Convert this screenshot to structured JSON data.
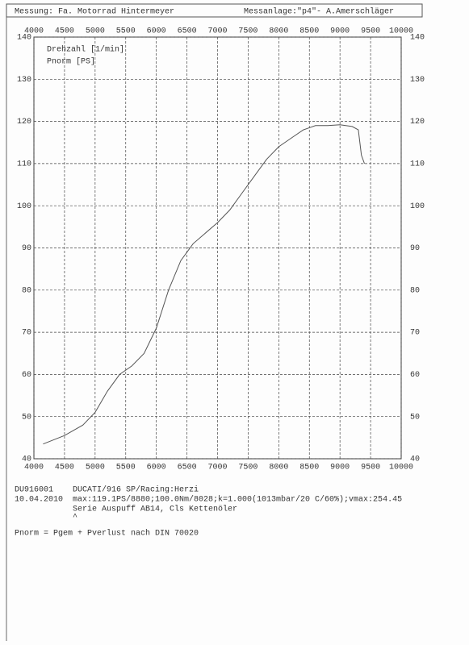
{
  "chart_data": {
    "type": "line",
    "header_left": "Messung: Fa. Motorrad Hintermeyer",
    "header_right": "Messanlage:\"p4\"- A.Amerschläger",
    "xlabel": "Drehzahl [1/min]",
    "ylabel": "Pnorm [PS]",
    "x": [
      4150,
      4500,
      4800,
      5000,
      5200,
      5400,
      5600,
      5800,
      6000,
      6200,
      6400,
      6600,
      6800,
      7000,
      7200,
      7400,
      7600,
      7800,
      8000,
      8200,
      8400,
      8600,
      8800,
      9000,
      9200,
      9300,
      9350,
      9400
    ],
    "values": [
      43.5,
      45.5,
      48,
      51,
      56,
      60,
      62,
      65,
      71,
      80,
      87,
      91,
      93.5,
      96,
      99,
      103,
      107,
      111,
      114,
      116,
      118,
      119,
      119,
      119.2,
      118.8,
      118,
      112,
      110
    ],
    "color": "#555555",
    "xlim": [
      4000,
      10000
    ],
    "xticks": [
      4000,
      4500,
      5000,
      5500,
      6000,
      6500,
      7000,
      7500,
      8000,
      8500,
      9000,
      9500,
      10000
    ],
    "ylim": [
      40,
      140
    ],
    "yticks": [
      40,
      50,
      60,
      70,
      80,
      90,
      100,
      110,
      120,
      130,
      140
    ],
    "grid": true,
    "notes": {
      "id": "DU916001",
      "date": "10.04.2010",
      "vehicle": "DUCATI/916 SP/Racing:Herzi",
      "max": "max:119.1PS/8880;100.0Nm/8028;k=1.000(1013mbar/20 C/60%);vmax:254.45",
      "remark": "Serie Auspuff AB14, Cls Kettenöler",
      "caret": "^",
      "formula": "Pnorm = Pgem + Pverlust nach DIN 70020"
    }
  }
}
